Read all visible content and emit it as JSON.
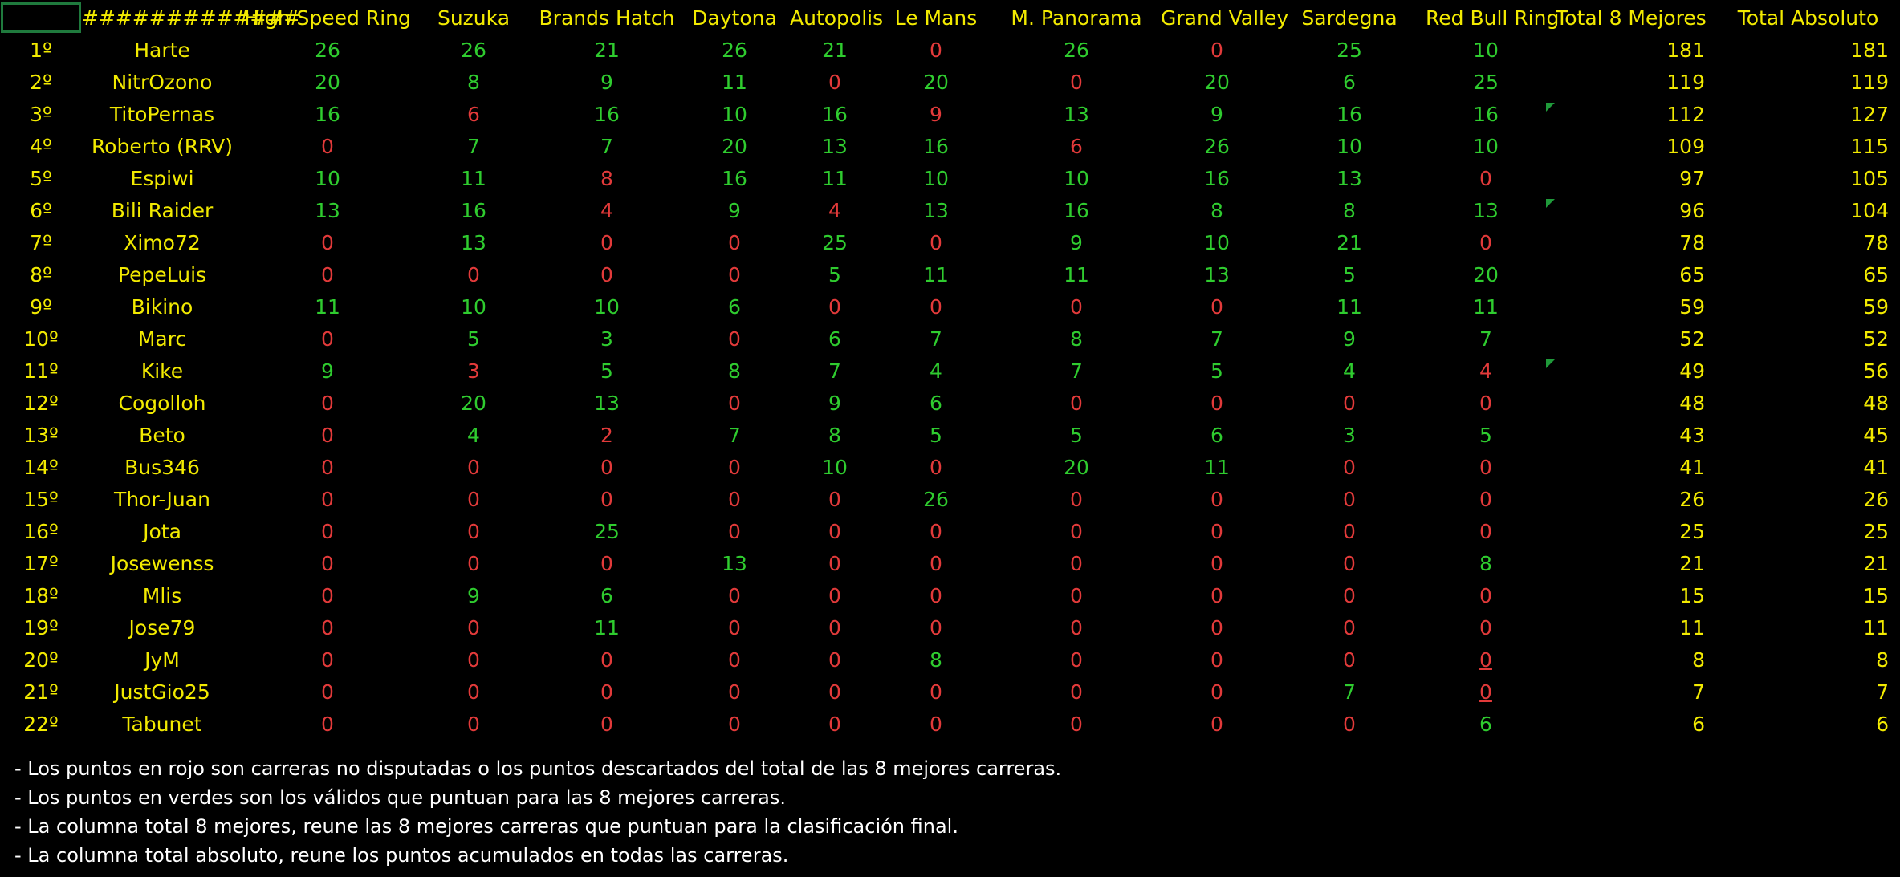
{
  "header": {
    "position_col": "",
    "driver_col": "#############",
    "races": [
      "High Speed Ring",
      "Suzuka",
      "Brands Hatch",
      "Daytona",
      "Autopolis",
      "Le Mans",
      "M. Panorama",
      "Grand Valley",
      "Sardegna",
      "Red Bull Ring"
    ],
    "total_best8": "Total 8 Mejores",
    "total_absolute": "Total Absoluto"
  },
  "colors": {
    "background": "#000000",
    "header_text": "#f2ea00",
    "valid_points": "#2fcc2f",
    "discarded_points": "#e23a3a",
    "selection_border": "#1f7a3d",
    "notes_text": "#ffffff"
  },
  "rows": [
    {
      "pos": "1º",
      "driver": "Harte",
      "scores": [
        26,
        26,
        21,
        26,
        21,
        0,
        26,
        0,
        25,
        10
      ],
      "status": [
        "g",
        "g",
        "g",
        "g",
        "g",
        "r",
        "g",
        "r",
        "g",
        "g"
      ],
      "best8": 181,
      "total": 181
    },
    {
      "pos": "2º",
      "driver": "NitrOzono",
      "scores": [
        20,
        8,
        9,
        11,
        0,
        20,
        0,
        20,
        6,
        25
      ],
      "status": [
        "g",
        "g",
        "g",
        "g",
        "r",
        "g",
        "r",
        "g",
        "g",
        "g"
      ],
      "best8": 119,
      "total": 119
    },
    {
      "pos": "3º",
      "driver": "TitoPernas",
      "scores": [
        16,
        6,
        16,
        10,
        16,
        9,
        13,
        9,
        16,
        16
      ],
      "status": [
        "g",
        "r",
        "g",
        "g",
        "g",
        "r",
        "g",
        "g",
        "g",
        "g"
      ],
      "best8": 112,
      "total": 127,
      "comment": true
    },
    {
      "pos": "4º",
      "driver": "Roberto (RRV)",
      "scores": [
        0,
        7,
        7,
        20,
        13,
        16,
        6,
        26,
        10,
        10
      ],
      "status": [
        "r",
        "g",
        "g",
        "g",
        "g",
        "g",
        "r",
        "g",
        "g",
        "g"
      ],
      "best8": 109,
      "total": 115
    },
    {
      "pos": "5º",
      "driver": "Espiwi",
      "scores": [
        10,
        11,
        8,
        16,
        11,
        10,
        10,
        16,
        13,
        0
      ],
      "status": [
        "g",
        "g",
        "r",
        "g",
        "g",
        "g",
        "g",
        "g",
        "g",
        "r"
      ],
      "best8": 97,
      "total": 105
    },
    {
      "pos": "6º",
      "driver": "Bili Raider",
      "scores": [
        13,
        16,
        4,
        9,
        4,
        13,
        16,
        8,
        8,
        13
      ],
      "status": [
        "g",
        "g",
        "r",
        "g",
        "r",
        "g",
        "g",
        "g",
        "g",
        "g"
      ],
      "best8": 96,
      "total": 104,
      "comment": true
    },
    {
      "pos": "7º",
      "driver": "Ximo72",
      "scores": [
        0,
        13,
        0,
        0,
        25,
        0,
        9,
        10,
        21,
        0
      ],
      "status": [
        "r",
        "g",
        "r",
        "r",
        "g",
        "r",
        "g",
        "g",
        "g",
        "r"
      ],
      "best8": 78,
      "total": 78
    },
    {
      "pos": "8º",
      "driver": "PepeLuis",
      "scores": [
        0,
        0,
        0,
        0,
        5,
        11,
        11,
        13,
        5,
        20
      ],
      "status": [
        "r",
        "r",
        "r",
        "r",
        "g",
        "g",
        "g",
        "g",
        "g",
        "g"
      ],
      "best8": 65,
      "total": 65
    },
    {
      "pos": "9º",
      "driver": "Bikino",
      "scores": [
        11,
        10,
        10,
        6,
        0,
        0,
        0,
        0,
        11,
        11
      ],
      "status": [
        "g",
        "g",
        "g",
        "g",
        "r",
        "r",
        "r",
        "r",
        "g",
        "g"
      ],
      "best8": 59,
      "total": 59
    },
    {
      "pos": "10º",
      "driver": "Marc",
      "scores": [
        0,
        5,
        3,
        0,
        6,
        7,
        8,
        7,
        9,
        7
      ],
      "status": [
        "r",
        "g",
        "g",
        "r",
        "g",
        "g",
        "g",
        "g",
        "g",
        "g"
      ],
      "best8": 52,
      "total": 52
    },
    {
      "pos": "11º",
      "driver": "Kike",
      "scores": [
        9,
        3,
        5,
        8,
        7,
        4,
        7,
        5,
        4,
        4
      ],
      "status": [
        "g",
        "r",
        "g",
        "g",
        "g",
        "g",
        "g",
        "g",
        "g",
        "r"
      ],
      "best8": 49,
      "total": 56,
      "comment": true
    },
    {
      "pos": "12º",
      "driver": "Cogolloh",
      "scores": [
        0,
        20,
        13,
        0,
        9,
        6,
        0,
        0,
        0,
        0
      ],
      "status": [
        "r",
        "g",
        "g",
        "r",
        "g",
        "g",
        "r",
        "r",
        "r",
        "r"
      ],
      "best8": 48,
      "total": 48
    },
    {
      "pos": "13º",
      "driver": "Beto",
      "scores": [
        0,
        4,
        2,
        7,
        8,
        5,
        5,
        6,
        3,
        5
      ],
      "status": [
        "r",
        "g",
        "r",
        "g",
        "g",
        "g",
        "g",
        "g",
        "g",
        "g"
      ],
      "best8": 43,
      "total": 45
    },
    {
      "pos": "14º",
      "driver": "Bus346",
      "scores": [
        0,
        0,
        0,
        0,
        10,
        0,
        20,
        11,
        0,
        0
      ],
      "status": [
        "r",
        "r",
        "r",
        "r",
        "g",
        "r",
        "g",
        "g",
        "r",
        "r"
      ],
      "best8": 41,
      "total": 41
    },
    {
      "pos": "15º",
      "driver": "Thor-Juan",
      "scores": [
        0,
        0,
        0,
        0,
        0,
        26,
        0,
        0,
        0,
        0
      ],
      "status": [
        "r",
        "r",
        "r",
        "r",
        "r",
        "g",
        "r",
        "r",
        "r",
        "r"
      ],
      "best8": 26,
      "total": 26
    },
    {
      "pos": "16º",
      "driver": "Jota",
      "scores": [
        0,
        0,
        25,
        0,
        0,
        0,
        0,
        0,
        0,
        0
      ],
      "status": [
        "r",
        "r",
        "g",
        "r",
        "r",
        "r",
        "r",
        "r",
        "r",
        "r"
      ],
      "best8": 25,
      "total": 25
    },
    {
      "pos": "17º",
      "driver": "Josewenss",
      "scores": [
        0,
        0,
        0,
        13,
        0,
        0,
        0,
        0,
        0,
        8
      ],
      "status": [
        "r",
        "r",
        "r",
        "g",
        "r",
        "r",
        "r",
        "r",
        "r",
        "g"
      ],
      "best8": 21,
      "total": 21
    },
    {
      "pos": "18º",
      "driver": "Mlis",
      "scores": [
        0,
        9,
        6,
        0,
        0,
        0,
        0,
        0,
        0,
        0
      ],
      "status": [
        "r",
        "g",
        "g",
        "r",
        "r",
        "r",
        "r",
        "r",
        "r",
        "r"
      ],
      "best8": 15,
      "total": 15
    },
    {
      "pos": "19º",
      "driver": "Jose79",
      "scores": [
        0,
        0,
        11,
        0,
        0,
        0,
        0,
        0,
        0,
        0
      ],
      "status": [
        "r",
        "r",
        "g",
        "r",
        "r",
        "r",
        "r",
        "r",
        "r",
        "r"
      ],
      "best8": 11,
      "total": 11
    },
    {
      "pos": "20º",
      "driver": "JyM",
      "scores": [
        0,
        0,
        0,
        0,
        0,
        8,
        0,
        0,
        0,
        0
      ],
      "status": [
        "r",
        "r",
        "r",
        "r",
        "r",
        "g",
        "r",
        "r",
        "r",
        "ru"
      ],
      "best8": 8,
      "total": 8
    },
    {
      "pos": "21º",
      "driver": "JustGio25",
      "scores": [
        0,
        0,
        0,
        0,
        0,
        0,
        0,
        0,
        7,
        0
      ],
      "status": [
        "r",
        "r",
        "r",
        "r",
        "r",
        "r",
        "r",
        "r",
        "g",
        "ru"
      ],
      "best8": 7,
      "total": 7
    },
    {
      "pos": "22º",
      "driver": "Tabunet",
      "scores": [
        0,
        0,
        0,
        0,
        0,
        0,
        0,
        0,
        0,
        6
      ],
      "status": [
        "r",
        "r",
        "r",
        "r",
        "r",
        "r",
        "r",
        "r",
        "r",
        "g"
      ],
      "best8": 6,
      "total": 6
    }
  ],
  "notes": [
    "- Los puntos en rojo son carreras no disputadas o los puntos descartados del total de las 8 mejores carreras.",
    "- Los puntos en verdes son los válidos que puntuan para las 8 mejores carreras.",
    "- La columna total 8 mejores, reune las 8 mejores carreras que puntuan para la clasificación final.",
    "- La columna total  absoluto, reune los puntos acumulados en todas las carreras."
  ]
}
